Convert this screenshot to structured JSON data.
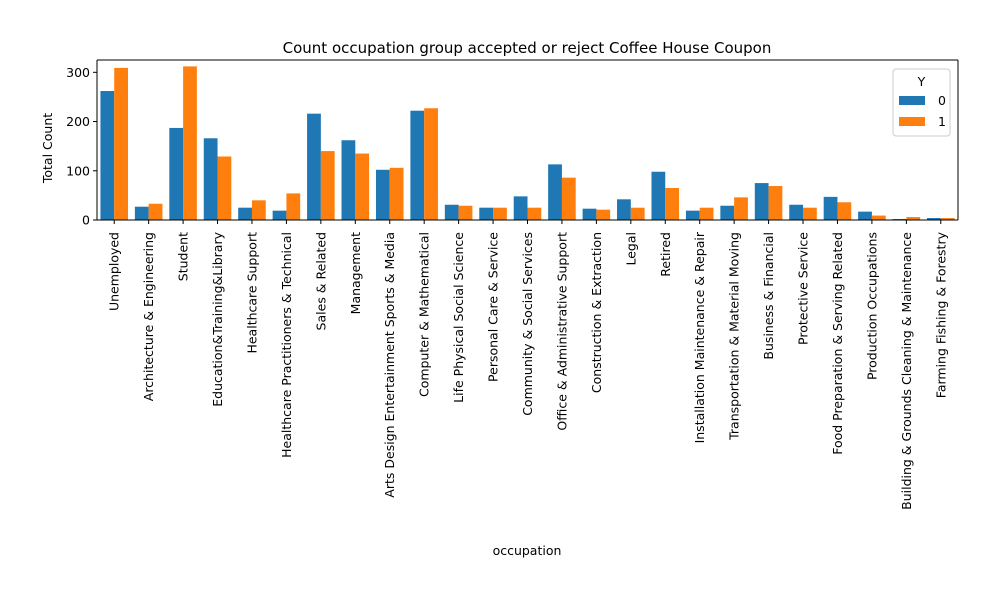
{
  "chart_data": {
    "type": "bar",
    "title": "Count occupation group accepted or reject Coffee House Coupon",
    "xlabel": "occupation",
    "ylabel": "Total Count",
    "ylim": [
      0,
      325
    ],
    "yticks": [
      0,
      100,
      200,
      300
    ],
    "grid": false,
    "legend": {
      "title": "Y",
      "placement": "top-right"
    },
    "categories": [
      "Unemployed",
      "Architecture & Engineering",
      "Student",
      "Education&Training&Library",
      "Healthcare Support",
      "Healthcare Practitioners & Technical",
      "Sales & Related",
      "Management",
      "Arts Design Entertainment Sports & Media",
      "Computer & Mathematical",
      "Life Physical Social Science",
      "Personal Care & Service",
      "Community & Social Services",
      "Office & Administrative Support",
      "Construction & Extraction",
      "Legal",
      "Retired",
      "Installation Maintenance & Repair",
      "Transportation & Material Moving",
      "Business & Financial",
      "Protective Service",
      "Food Preparation & Serving Related",
      "Production Occupations",
      "Building & Grounds Cleaning & Maintenance",
      "Farming Fishing & Forestry"
    ],
    "series": [
      {
        "name": "0",
        "color": "#1f77b4",
        "values": [
          262,
          27,
          187,
          166,
          25,
          19,
          216,
          162,
          102,
          222,
          31,
          25,
          48,
          113,
          23,
          42,
          98,
          19,
          29,
          75,
          31,
          47,
          17,
          2,
          4
        ]
      },
      {
        "name": "1",
        "color": "#ff7f0e",
        "values": [
          309,
          33,
          312,
          129,
          40,
          54,
          140,
          135,
          106,
          227,
          29,
          25,
          25,
          86,
          21,
          25,
          65,
          25,
          46,
          69,
          25,
          36,
          9,
          6,
          4
        ]
      }
    ]
  }
}
